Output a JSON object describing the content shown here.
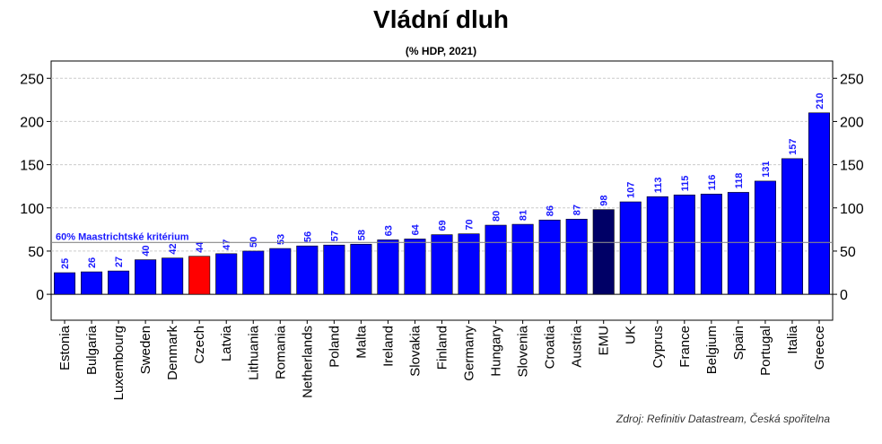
{
  "chart_data": {
    "type": "bar",
    "title": "Vládní dluh",
    "subtitle": "(% HDP, 2021)",
    "source": "Zdroj: Refinitiv Datastream, Česká spořitelna",
    "categories": [
      "Estonia",
      "Bulgaria",
      "Luxembourg",
      "Sweden",
      "Denmark",
      "Czech",
      "Latvia",
      "Lithuania",
      "Romania",
      "Netherlands",
      "Poland",
      "Malta",
      "Ireland",
      "Slovakia",
      "Finland",
      "Germany",
      "Hungary",
      "Slovenia",
      "Croatia",
      "Austria",
      "EMU",
      "UK",
      "Cyprus",
      "France",
      "Belgium",
      "Spain",
      "Portugal",
      "Italia",
      "Greece"
    ],
    "values": [
      25,
      26,
      27,
      40,
      42,
      44,
      47,
      50,
      53,
      56,
      57,
      58,
      63,
      64,
      69,
      70,
      80,
      81,
      86,
      87,
      98,
      107,
      113,
      115,
      116,
      118,
      131,
      157,
      210
    ],
    "ylim": [
      -30,
      270
    ],
    "yticks": [
      0,
      50,
      100,
      150,
      200,
      250
    ],
    "ytick_labels": [
      "0",
      "50",
      "100",
      "150",
      "200",
      "250"
    ],
    "grid": true,
    "reference_line": {
      "value": 60,
      "label": "60% Maastrichtské kritérium"
    },
    "colors": {
      "default": "#0000ff",
      "highlight_Czech": "#ff0000",
      "highlight_EMU": "#000066",
      "data_label": "#1a1aff",
      "reference_line": "#888888",
      "grid": "#cccccc"
    }
  }
}
